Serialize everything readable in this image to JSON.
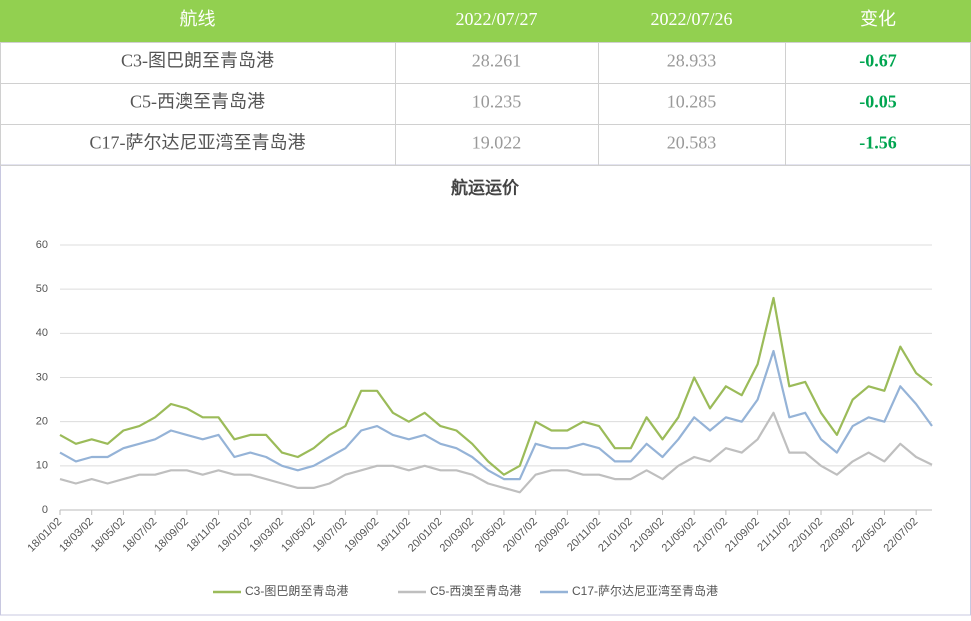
{
  "table": {
    "header": [
      "航线",
      "2022/07/27",
      "2022/07/26",
      "变化"
    ],
    "rows": [
      [
        "C3-图巴朗至青岛港",
        28.261,
        28.933,
        -0.67
      ],
      [
        "C5-西澳至青岛港",
        10.235,
        10.285,
        -0.05
      ],
      [
        "C17-萨尔达尼亚湾至青岛港",
        19.022,
        20.583,
        -1.56
      ]
    ]
  },
  "chart_data": {
    "type": "line",
    "title": "航运运价",
    "categories": [
      "18/01/02",
      null,
      "18/03/02",
      null,
      "18/05/02",
      null,
      "18/07/02",
      null,
      "18/09/02",
      null,
      "18/11/02",
      null,
      "19/01/02",
      null,
      "19/03/02",
      null,
      "19/05/02",
      null,
      "19/07/02",
      null,
      "19/09/02",
      null,
      "19/11/02",
      null,
      "20/01/02",
      null,
      "20/03/02",
      null,
      "20/05/02",
      null,
      "20/07/02",
      null,
      "20/09/02",
      null,
      "20/11/02",
      null,
      "21/01/02",
      null,
      "21/03/02",
      null,
      "21/05/02",
      null,
      "21/07/02",
      null,
      "21/09/02",
      null,
      "21/11/02",
      null,
      "22/01/02",
      null,
      "22/03/02",
      null,
      "22/05/02",
      null,
      "22/07/02",
      null
    ],
    "series": [
      {
        "name": "C3-图巴朗至青岛港",
        "color": "#9bbb59",
        "values": [
          17,
          15,
          16,
          15,
          18,
          19,
          21,
          24,
          23,
          21,
          21,
          16,
          17,
          17,
          13,
          12,
          14,
          17,
          19,
          27,
          27,
          22,
          20,
          22,
          19,
          18,
          15,
          11,
          8,
          10,
          20,
          18,
          18,
          20,
          19,
          14,
          14,
          21,
          16,
          21,
          30,
          23,
          28,
          26,
          33,
          48,
          28,
          29,
          22,
          17,
          25,
          28,
          27,
          37,
          31,
          28.261
        ]
      },
      {
        "name": "C5-西澳至青岛港",
        "color": "#bfbfbf",
        "values": [
          7,
          6,
          7,
          6,
          7,
          8,
          8,
          9,
          9,
          8,
          9,
          8,
          8,
          7,
          6,
          5,
          5,
          6,
          8,
          9,
          10,
          10,
          9,
          10,
          9,
          9,
          8,
          6,
          5,
          4,
          8,
          9,
          9,
          8,
          8,
          7,
          7,
          9,
          7,
          10,
          12,
          11,
          14,
          13,
          16,
          22,
          13,
          13,
          10,
          8,
          11,
          13,
          11,
          15,
          12,
          10.235
        ]
      },
      {
        "name": "C17-萨尔达尼亚湾至青岛港",
        "color": "#95b3d7",
        "values": [
          13,
          11,
          12,
          12,
          14,
          15,
          16,
          18,
          17,
          16,
          17,
          12,
          13,
          12,
          10,
          9,
          10,
          12,
          14,
          18,
          19,
          17,
          16,
          17,
          15,
          14,
          12,
          9,
          7,
          7,
          15,
          14,
          14,
          15,
          14,
          11,
          11,
          15,
          12,
          16,
          21,
          18,
          21,
          20,
          25,
          36,
          21,
          22,
          16,
          13,
          19,
          21,
          20,
          28,
          24,
          19.022
        ]
      }
    ],
    "ylim": [
      0,
      60
    ],
    "yticks": [
      0,
      10,
      20,
      30,
      40,
      50,
      60
    ],
    "grid": true,
    "legend": "bottom"
  }
}
